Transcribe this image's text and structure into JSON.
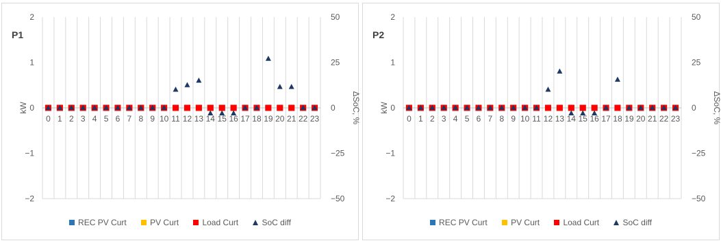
{
  "series_legend": [
    {
      "label": "REC PV Curt",
      "color": "#2e75b6",
      "marker": "square"
    },
    {
      "label": "PV Curt",
      "color": "#ffc000",
      "marker": "square"
    },
    {
      "label": "Load Curt",
      "color": "#ff0000",
      "marker": "square"
    },
    {
      "label": "SoC diff",
      "color": "#1f3864",
      "marker": "triangle"
    }
  ],
  "chart_data": [
    {
      "type": "scatter",
      "title": "P1",
      "x": [
        0,
        1,
        2,
        3,
        4,
        5,
        6,
        7,
        8,
        9,
        10,
        11,
        12,
        13,
        14,
        15,
        16,
        17,
        18,
        19,
        20,
        21,
        22,
        23
      ],
      "ylabel": "kW",
      "ylim": [
        -2,
        2
      ],
      "yticks": [
        "2",
        "1",
        "0",
        "−1",
        "−2"
      ],
      "y2label": "ΔSoC, %",
      "y2lim": [
        -50,
        50
      ],
      "y2ticks": [
        "50",
        "25",
        "0",
        "−25",
        "−50"
      ],
      "grid": true,
      "legend_position": "bottom",
      "series": [
        {
          "name": "REC PV Curt",
          "axis": "left",
          "values": [
            0,
            0,
            0,
            0,
            0,
            0,
            0,
            0,
            0,
            0,
            0,
            0,
            0,
            0,
            0,
            0,
            0,
            0,
            0,
            0,
            0,
            0,
            0,
            0
          ]
        },
        {
          "name": "PV Curt",
          "axis": "left",
          "values": [
            0,
            0,
            0,
            0,
            0,
            0,
            0,
            0,
            0,
            0,
            0,
            0,
            0,
            0,
            0,
            0,
            0,
            0,
            0,
            0,
            0,
            0,
            0,
            0
          ]
        },
        {
          "name": "Load Curt",
          "axis": "left",
          "values": [
            0,
            0,
            0,
            0,
            0,
            0,
            0,
            0,
            0,
            0,
            0,
            0,
            0,
            0,
            0,
            0,
            0,
            0,
            0,
            0,
            0,
            0,
            0,
            0
          ]
        },
        {
          "name": "SoC diff",
          "axis": "right",
          "values": [
            0,
            0,
            0,
            0,
            0,
            0,
            0,
            0,
            0,
            0,
            0,
            10,
            12.5,
            15,
            -3,
            -3,
            -3,
            0,
            0,
            27,
            11.5,
            11.5,
            0,
            0
          ]
        }
      ]
    },
    {
      "type": "scatter",
      "title": "P2",
      "x": [
        0,
        1,
        2,
        3,
        4,
        5,
        6,
        7,
        8,
        9,
        10,
        11,
        12,
        13,
        14,
        15,
        16,
        17,
        18,
        19,
        20,
        21,
        22,
        23
      ],
      "ylabel": "kW",
      "ylim": [
        -2,
        2
      ],
      "yticks": [
        "2",
        "1",
        "0",
        "−1",
        "−2"
      ],
      "y2label": "ΔSoC, %",
      "y2lim": [
        -50,
        50
      ],
      "y2ticks": [
        "50",
        "25",
        "0",
        "−25",
        "−50"
      ],
      "grid": true,
      "legend_position": "bottom",
      "series": [
        {
          "name": "REC PV Curt",
          "axis": "left",
          "values": [
            0,
            0,
            0,
            0,
            0,
            0,
            0,
            0,
            0,
            0,
            0,
            0,
            0,
            0,
            0,
            0,
            0,
            0,
            0,
            0,
            0,
            0,
            0,
            0
          ]
        },
        {
          "name": "PV Curt",
          "axis": "left",
          "values": [
            0,
            0,
            0,
            0,
            0,
            0,
            0,
            0,
            0,
            0,
            0,
            0,
            0,
            0,
            0,
            0,
            0,
            0,
            0,
            0,
            0,
            0,
            0,
            0
          ]
        },
        {
          "name": "Load Curt",
          "axis": "left",
          "values": [
            0,
            0,
            0,
            0,
            0,
            0,
            0,
            0,
            0,
            0,
            0,
            0,
            0,
            0,
            0,
            0,
            0,
            0,
            0,
            0,
            0,
            0,
            0,
            0
          ]
        },
        {
          "name": "SoC diff",
          "axis": "right",
          "values": [
            0,
            0,
            0,
            0,
            0,
            0,
            0,
            0,
            0,
            0,
            0,
            0,
            10,
            20,
            -3,
            -3,
            -3,
            0,
            15.5,
            0,
            0,
            0,
            0,
            0
          ]
        }
      ]
    }
  ]
}
